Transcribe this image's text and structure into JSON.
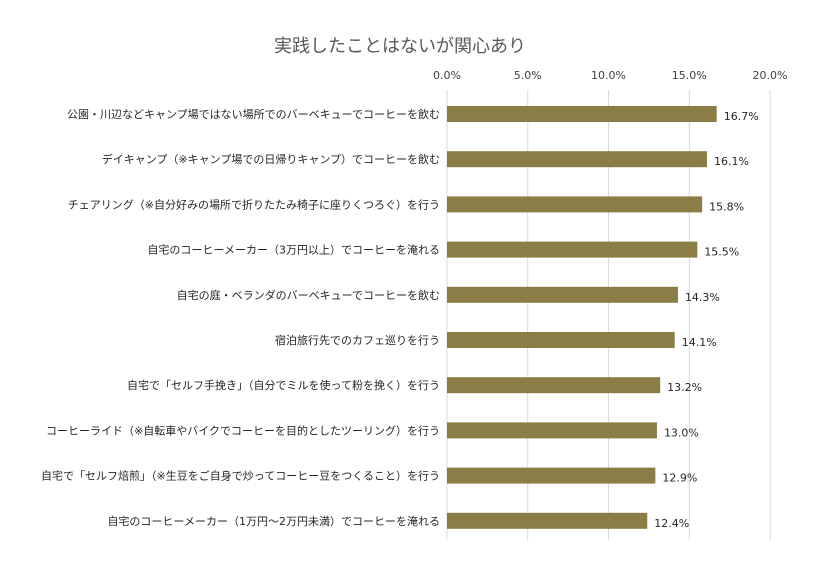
{
  "chart_data": {
    "type": "bar",
    "orientation": "horizontal",
    "title": "実践したことはないが関心あり",
    "xlim": [
      0,
      20
    ],
    "tick_values": [
      0,
      5,
      10,
      15,
      20
    ],
    "tick_labels": [
      "0.0%",
      "5.0%",
      "10.0%",
      "15.0%",
      "20.0%"
    ],
    "axis_position": "top",
    "grid": true,
    "bar_color": "#8b7d46",
    "categories": [
      "公園・川辺などキャンプ場ではない場所でのバーベキューでコーヒーを飲む",
      "デイキャンプ（※キャンプ場での日帰りキャンプ）でコーヒーを飲む",
      "チェアリング（※自分好みの場所で折りたたみ椅子に座りくつろぐ）を行う",
      "自宅のコーヒーメーカー（3万円以上）でコーヒーを淹れる",
      "自宅の庭・ベランダのバーベキューでコーヒーを飲む",
      "宿泊旅行先でのカフェ巡りを行う",
      "自宅で「セルフ手挽き」（自分でミルを使って粉を挽く）を行う",
      "コーヒーライド（※自転車やバイクでコーヒーを目的としたツーリング）を行う",
      "自宅で「セルフ焙煎」（※生豆をご自身で炒ってコーヒー豆をつくること）を行う",
      "自宅のコーヒーメーカー（1万円～2万円未満）でコーヒーを淹れる"
    ],
    "values": [
      16.7,
      16.1,
      15.8,
      15.5,
      14.3,
      14.1,
      13.2,
      13.0,
      12.9,
      12.4
    ],
    "value_labels": [
      "16.7%",
      "16.1%",
      "15.8%",
      "15.5%",
      "14.3%",
      "14.1%",
      "13.2%",
      "13.0%",
      "12.9%",
      "12.4%"
    ]
  }
}
